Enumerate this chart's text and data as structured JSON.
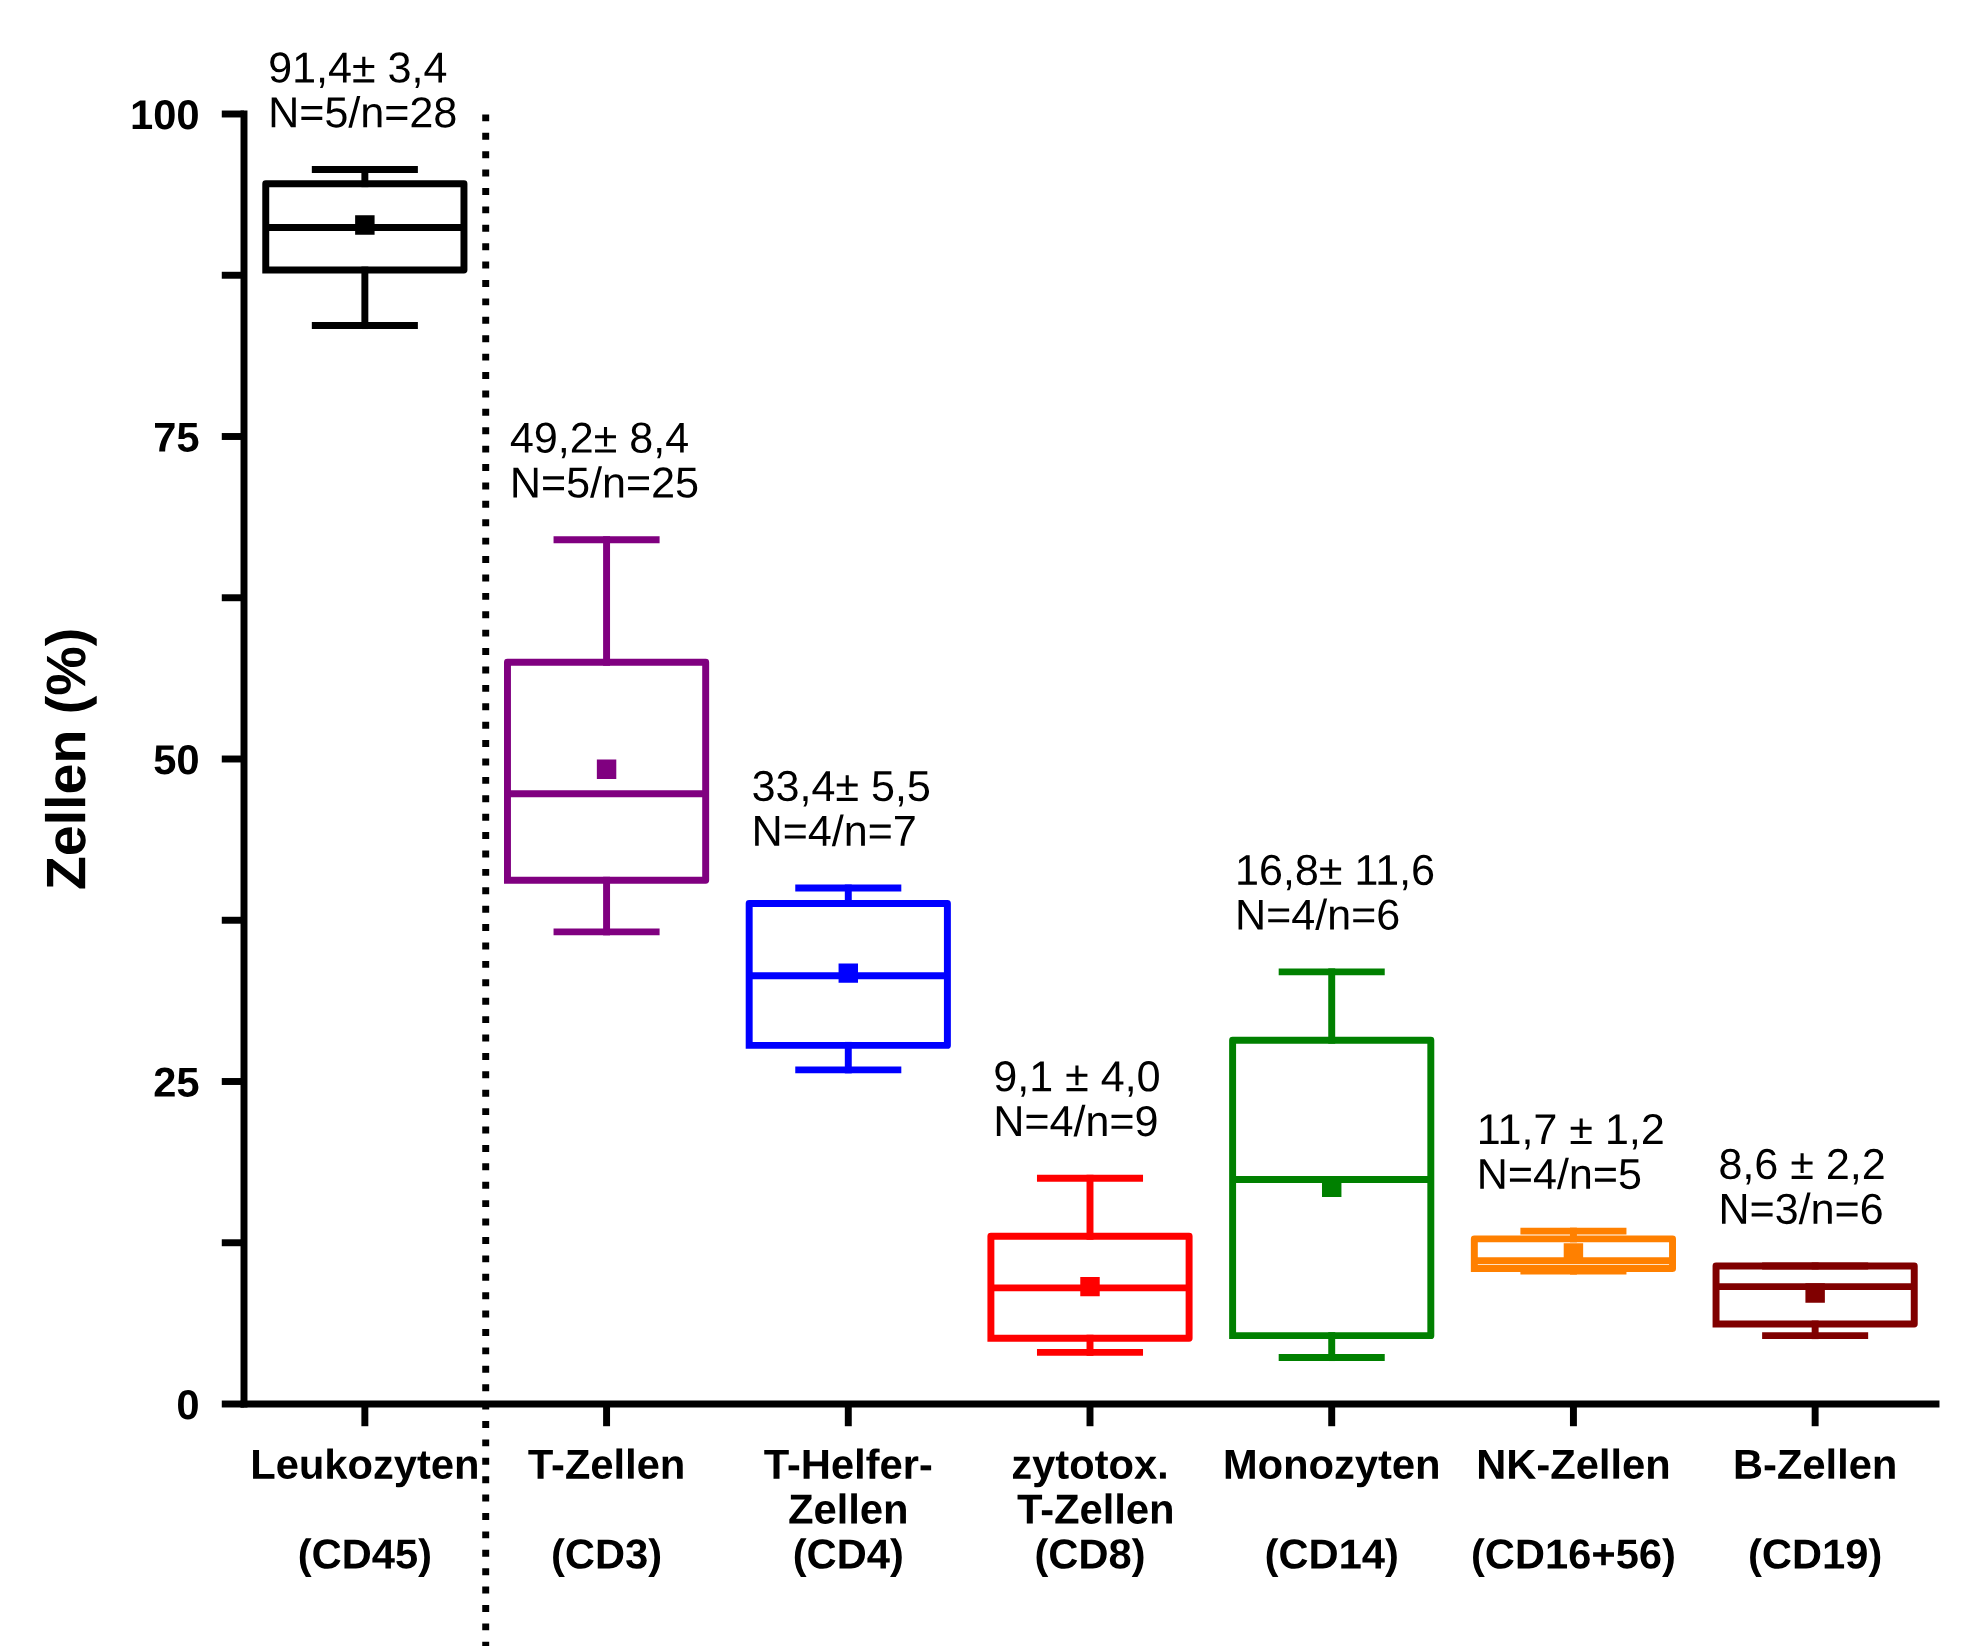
{
  "chart_data": {
    "type": "box",
    "ylabel": "Zellen (%)",
    "categories": [
      "Leukozyten\n\n(CD45)",
      "T-Zellen\n\n(CD3)",
      "T-Helfer-\nZellen\n(CD4)",
      "zytotox.\n T-Zellen\n(CD8)",
      "Monozyten\n\n(CD14)",
      "NK-Zellen\n\n(CD16+56)",
      "B-Zellen\n\n(CD19)"
    ],
    "colors": [
      "#000000",
      "#800080",
      "#0000ff",
      "#ff0000",
      "#008000",
      "#ff8000",
      "#800000"
    ],
    "boxes": [
      {
        "low": 83.6,
        "q1": 87.9,
        "median": 91.2,
        "q3": 94.6,
        "high": 95.7,
        "mean": 91.4
      },
      {
        "low": 36.6,
        "q1": 40.6,
        "median": 47.3,
        "q3": 57.5,
        "high": 67.0,
        "mean": 49.2
      },
      {
        "low": 25.9,
        "q1": 27.8,
        "median": 33.2,
        "q3": 38.8,
        "high": 40.0,
        "mean": 33.4
      },
      {
        "low": 4.0,
        "q1": 5.1,
        "median": 9.0,
        "q3": 13.0,
        "high": 17.5,
        "mean": 9.1
      },
      {
        "low": 3.6,
        "q1": 5.3,
        "median": 17.4,
        "q3": 28.2,
        "high": 33.5,
        "mean": 16.8
      },
      {
        "low": 10.3,
        "q1": 10.5,
        "median": 11.1,
        "q3": 12.8,
        "high": 13.4,
        "mean": 11.7
      },
      {
        "low": 5.3,
        "q1": 6.2,
        "median": 9.1,
        "q3": 10.7,
        "high": 10.7,
        "mean": 8.6
      }
    ],
    "ylim": [
      0,
      100
    ],
    "yticks": [
      0,
      {
        "value": 12.5,
        "label": null
      },
      25,
      {
        "value": 37.5,
        "label": null
      },
      50,
      {
        "value": 62.5,
        "label": null
      },
      75,
      {
        "value": 87.5,
        "label": null
      },
      100
    ],
    "annotations": [
      {
        "text": "91,4± 3,4\nN=5/n=28",
        "x": "Leukozyten\n\n(CD45)",
        "y": 95.7
      },
      {
        "text": "49,2± 8,4\nN=5/n=25",
        "x": "T-Zellen\n\n(CD3)",
        "y": 67.0
      },
      {
        "text": "33,4± 5,5\nN=4/n=7",
        "x": "T-Helfer-\nZellen\n(CD4)",
        "y": 40.0
      },
      {
        "text": "9,1 ± 4,0\nN=4/n=9",
        "x": "zytotox.\n T-Zellen\n(CD8)",
        "y": 17.5
      },
      {
        "text": "16,8± 11,6\nN=4/n=6",
        "x": "Monozyten\n\n(CD14)",
        "y": 33.5
      },
      {
        "text": "11,7 ± 1,2\nN=4/n=5",
        "x": "NK-Zellen\n\n(CD16+56)",
        "y": 13.4
      },
      {
        "text": "8,6 ± 2,2\nN=3/n=6",
        "x": "B-Zellen\n\n(CD19)",
        "y": 10.7
      }
    ],
    "grid": false,
    "legend": false
  }
}
